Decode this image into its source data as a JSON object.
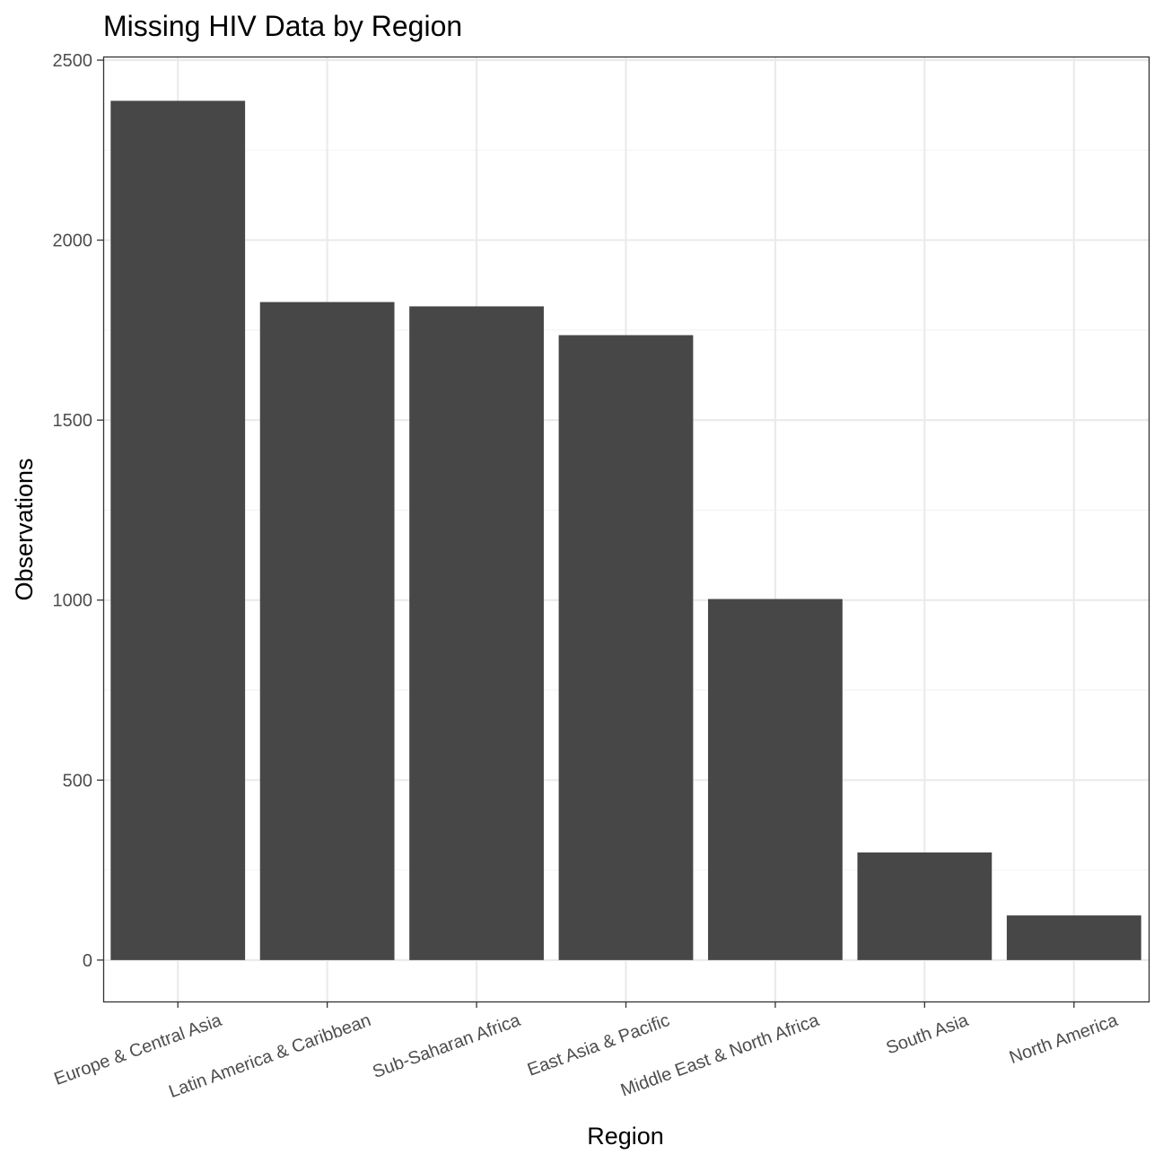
{
  "chart_data": {
    "type": "bar",
    "title": "Missing HIV Data by Region",
    "xlabel": "Region",
    "ylabel": "Observations",
    "categories": [
      "Europe & Central Asia",
      "Latin America & Caribbean",
      "Sub-Saharan Africa",
      "East Asia & Pacific",
      "Middle East & North Africa",
      "South Asia",
      "North America"
    ],
    "values": [
      2387,
      1828,
      1816,
      1736,
      1003,
      299,
      124
    ],
    "ylim": [
      -115,
      2510
    ],
    "yticks": [
      0,
      500,
      1000,
      1500,
      2000,
      2500
    ],
    "yticks_minor": [
      250,
      750,
      1250,
      1750,
      2250
    ],
    "grid": true,
    "legend": "none",
    "theme": "bw",
    "colors": {
      "bar": "#474747",
      "grid_major": "#ebebeb",
      "grid_minor": "#f4f4f4",
      "panel_border": "#333333",
      "tick_text": "#4d4d4d",
      "title_text": "#000000"
    }
  }
}
